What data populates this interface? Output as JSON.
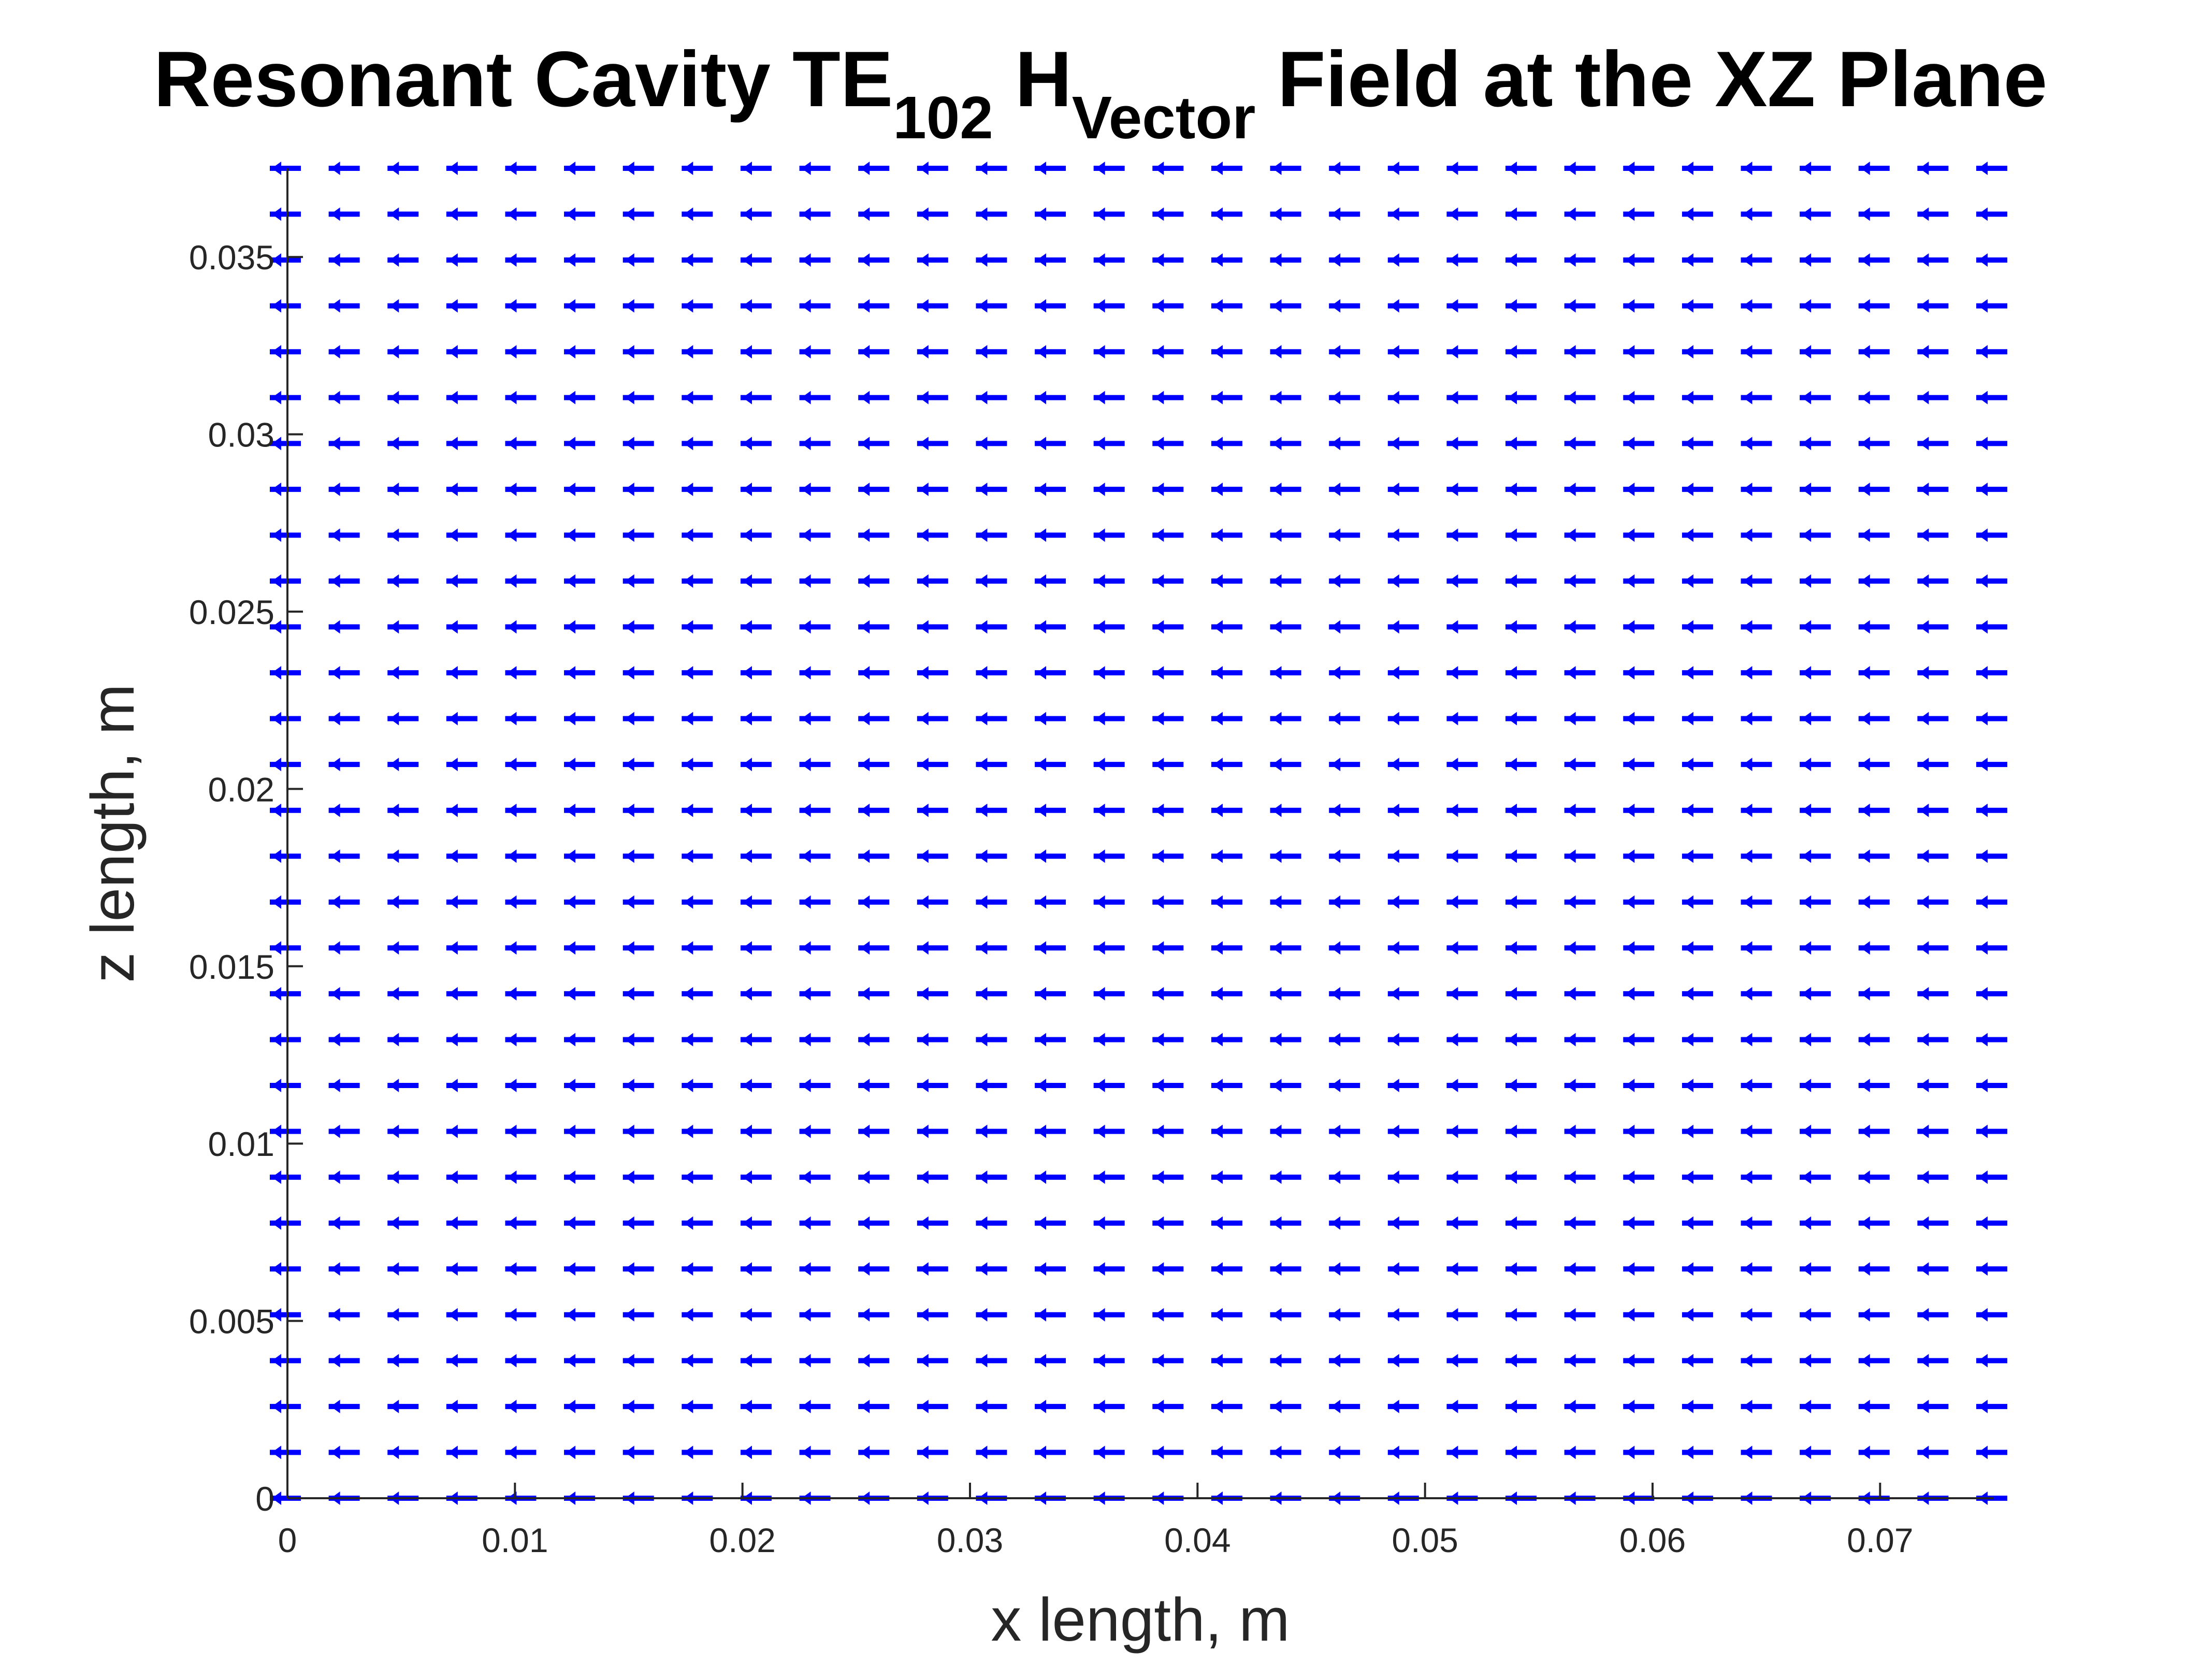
{
  "chart_data": {
    "type": "quiver",
    "title": {
      "text": "Resonant Cavity TE",
      "subscript_1": "102",
      "mid_text": " H",
      "subscript_2": "Vector",
      "end_text": " Field at the XZ Plane"
    },
    "xlabel": "x length, m",
    "ylabel": "z length, m",
    "xlim": [
      0,
      0.075
    ],
    "ylim": [
      0,
      0.0375
    ],
    "x_ticks": [
      0,
      0.01,
      0.02,
      0.03,
      0.04,
      0.05,
      0.06,
      0.07
    ],
    "x_tick_labels": [
      "0",
      "0.01",
      "0.02",
      "0.03",
      "0.04",
      "0.05",
      "0.06",
      "0.07"
    ],
    "y_ticks": [
      0,
      0.005,
      0.01,
      0.015,
      0.02,
      0.025,
      0.03,
      0.035
    ],
    "y_tick_labels": [
      "0",
      "0.005",
      "0.01",
      "0.015",
      "0.02",
      "0.025",
      "0.03",
      "0.035"
    ],
    "grid": false,
    "series": [
      {
        "x_start": 0,
        "x_step": 0.0025862,
        "x_count": 30,
        "z_start": 0,
        "z_step": 0.0012931,
        "z_count": 30,
        "u": -1,
        "w": 0,
        "color": "#0000ff"
      }
    ]
  }
}
